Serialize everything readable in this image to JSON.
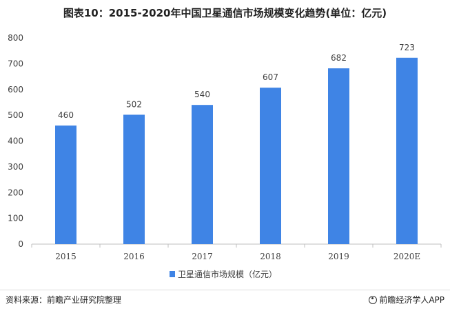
{
  "title": "图表10：2015-2020年中国卫星通信市场规模变化趋势(单位：亿元)",
  "source": "资料来源：前瞻产业研究院整理",
  "brand": "前瞻经济学人APP",
  "colors": {
    "bar": "#3f84e5",
    "axis": "#bfbfbf",
    "text": "#404040"
  },
  "chart_data": {
    "type": "bar",
    "categories": [
      "2015",
      "2016",
      "2017",
      "2018",
      "2019",
      "2020E"
    ],
    "series": [
      {
        "name": "卫星通信市场规模（亿元）",
        "values": [
          460,
          502,
          540,
          607,
          682,
          723
        ]
      }
    ],
    "yticks": [
      "0",
      "100",
      "200",
      "300",
      "400",
      "500",
      "600",
      "700",
      "800"
    ],
    "ylim": [
      0,
      800
    ],
    "xlabel": "",
    "ylabel": "",
    "grid": false,
    "legend": "bottom-center"
  }
}
